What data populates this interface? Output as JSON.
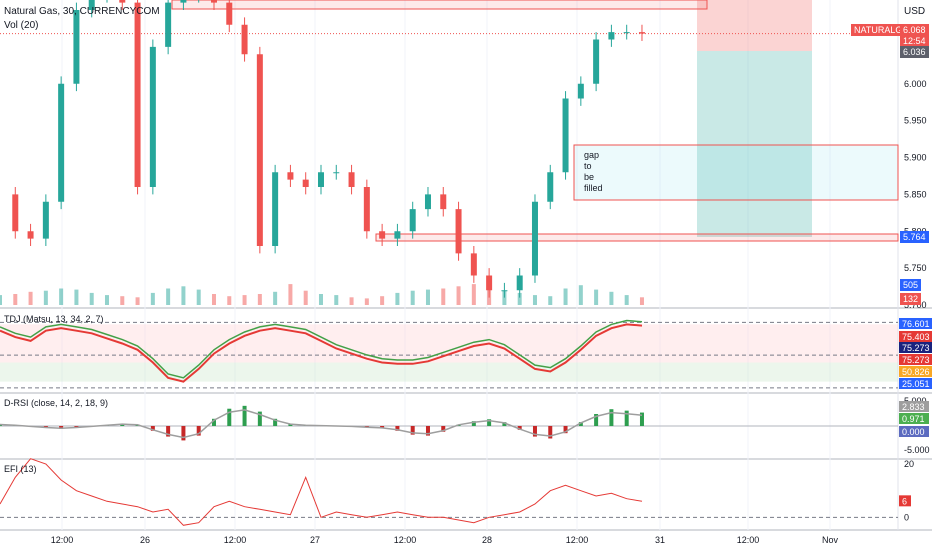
{
  "chart_data": {
    "type": "line",
    "symbol": "NATURALGAS",
    "title": "Natural Gas, 30, CURRENCYCOM",
    "volume_label": "Vol (20)",
    "currency": "USD",
    "x_ticks": [
      "12:00",
      "26",
      "12:00",
      "27",
      "12:00",
      "28",
      "12:00",
      "31",
      "12:00",
      "Nov"
    ],
    "price_axis": {
      "ylim": [
        5.7,
        6.1
      ],
      "ticks": [
        "6.000",
        "5.950",
        "5.900",
        "5.850",
        "5.800",
        "5.750",
        "5.700"
      ]
    },
    "price_tags": {
      "symbol_tag": "NATURALGAS",
      "last": "6.068",
      "countdown": "12:54",
      "target": "6.036",
      "stop": "5.764",
      "volume": "505",
      "volume_ma": "132"
    },
    "price_series": {
      "name": "Natural Gas",
      "x": [
        0,
        4,
        8,
        12,
        16,
        20,
        24,
        28,
        32,
        36,
        40,
        44,
        48,
        52,
        56,
        60,
        64,
        68,
        72,
        76,
        80,
        84,
        88,
        92,
        96,
        100,
        104,
        108,
        112,
        116,
        120,
        124,
        128,
        132,
        136,
        140,
        144,
        148,
        152,
        156,
        160,
        164,
        168
      ],
      "values": [
        5.85,
        5.8,
        5.79,
        5.84,
        6.0,
        6.1,
        6.12,
        6.13,
        6.11,
        5.86,
        6.05,
        6.11,
        6.12,
        6.13,
        6.11,
        6.08,
        6.04,
        5.78,
        5.88,
        5.87,
        5.86,
        5.88,
        5.88,
        5.86,
        5.8,
        5.79,
        5.8,
        5.83,
        5.85,
        5.83,
        5.77,
        5.74,
        5.72,
        5.72,
        5.74,
        5.84,
        5.88,
        5.98,
        6.0,
        6.06,
        6.07,
        6.07,
        6.068
      ]
    },
    "annotation": {
      "lines": [
        "gap",
        "to",
        "be",
        "filled"
      ]
    },
    "tdj": {
      "label": "TDJ (Matsu, 13, 34, 2, 7)",
      "ylim": [
        25,
        80
      ],
      "levels": [
        76.601,
        75.403,
        75.273,
        75.273,
        50.826,
        25.051
      ],
      "level_labels": [
        "76.601",
        "75.403",
        "75.273",
        "75.273",
        "50.826",
        "25.051"
      ],
      "level_colors": [
        "#2962ff",
        "#e53935",
        "#1a237e",
        "#e53935",
        "#f9a825",
        "#2962ff"
      ],
      "values": [
        70,
        65,
        62,
        70,
        72,
        70,
        68,
        64,
        60,
        55,
        45,
        33,
        30,
        40,
        52,
        60,
        66,
        70,
        72,
        70,
        68,
        62,
        56,
        52,
        48,
        45,
        44,
        44,
        46,
        50,
        54,
        58,
        60,
        56,
        48,
        40,
        38,
        45,
        55,
        66,
        72,
        75,
        74
      ]
    },
    "drsi": {
      "label": "D-RSI (close, 14, 2, 18, 9)",
      "ylim": [
        -5,
        5
      ],
      "ticks": [
        "5.000",
        "-5.000"
      ],
      "level_labels": [
        "2.833",
        "0.971",
        "0.000"
      ],
      "level_colors": [
        "#9e9e9e",
        "#4caf50",
        "#5c6bc0"
      ],
      "values": [
        0.4,
        0.2,
        -0.1,
        -0.4,
        -0.6,
        -0.4,
        -0.1,
        0.2,
        0.5,
        0.3,
        -1.0,
        -2.2,
        -3.0,
        -2.0,
        1.5,
        3.6,
        4.2,
        3.0,
        1.5,
        0.5,
        0.2,
        0.1,
        0.0,
        -0.1,
        -0.3,
        -0.5,
        -1.0,
        -1.8,
        -2.0,
        -1.2,
        0.3,
        1.0,
        1.4,
        0.8,
        -0.8,
        -2.2,
        -2.6,
        -1.5,
        0.8,
        2.5,
        3.5,
        3.2,
        2.8
      ]
    },
    "efi": {
      "label": "EFI (13)",
      "ylim": [
        -4,
        20
      ],
      "ticks": [
        "20",
        "0"
      ],
      "last_label": "6",
      "values": [
        5,
        15,
        22,
        20,
        14,
        10,
        8,
        6,
        5,
        4,
        2,
        3,
        -3,
        -2,
        4,
        6,
        4,
        3,
        2,
        1,
        15,
        0,
        2,
        1,
        0,
        1,
        2,
        1,
        0,
        0,
        -1,
        -2,
        0,
        1,
        2,
        5,
        10,
        12,
        10,
        8,
        9,
        7,
        6
      ]
    }
  }
}
